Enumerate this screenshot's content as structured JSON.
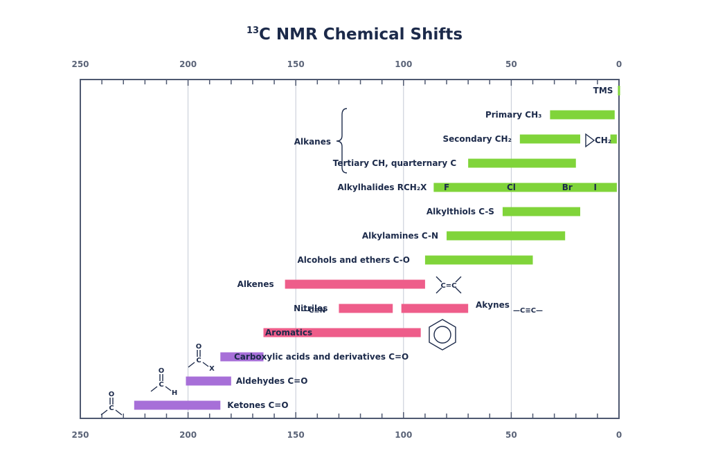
{
  "colors": {
    "alkyl": "#80d43a",
    "unsaturated": "#ee5d8a",
    "carbonyl": "#a76fd8",
    "frame": "#4e5870",
    "grid": "#c3c8d4",
    "text": "#1c2a4a"
  },
  "chart_data": {
    "type": "bar",
    "title_sup": "13",
    "title_main": "C NMR Chemical Shifts",
    "xlim": [
      250,
      0
    ],
    "xticks": [
      250,
      200,
      150,
      100,
      50,
      0
    ],
    "gridlines": [
      200,
      150,
      100,
      50
    ],
    "bars": [
      {
        "label": "TMS",
        "from": 0.5,
        "to": -0.5,
        "color": "alkyl",
        "row": 0
      },
      {
        "label": "Primary CH₃",
        "from": 32,
        "to": 2,
        "color": "alkyl",
        "row": 1
      },
      {
        "label": "Secondary CH₂",
        "from": 46,
        "to": 18,
        "color": "alkyl",
        "row": 2
      },
      {
        "label": "CH₂",
        "from": 4,
        "to": 1,
        "color": "alkyl",
        "row": 2
      },
      {
        "label": "Tertiary CH, quarternary C",
        "from": 70,
        "to": 20,
        "color": "alkyl",
        "row": 3
      },
      {
        "label": "Alkylhalides RCH₂X",
        "from": 86,
        "to": 1,
        "color": "alkyl",
        "row": 4
      },
      {
        "label": "Alkylthiols C-S",
        "from": 54,
        "to": 18,
        "color": "alkyl",
        "row": 5
      },
      {
        "label": "Alkylamines C-N",
        "from": 80,
        "to": 25,
        "color": "alkyl",
        "row": 6
      },
      {
        "label": "Alcohols and ethers C-O",
        "from": 90,
        "to": 40,
        "color": "alkyl",
        "row": 7
      },
      {
        "label": "Alkenes",
        "from": 155,
        "to": 90,
        "color": "unsaturated",
        "row": 8
      },
      {
        "label": "Nitriles",
        "from": 130,
        "to": 105,
        "color": "unsaturated",
        "row": 9
      },
      {
        "label": "Akynes",
        "from": 101,
        "to": 70,
        "color": "unsaturated",
        "row": 9
      },
      {
        "label": "Aromatics",
        "from": 165,
        "to": 92,
        "color": "unsaturated",
        "row": 10
      },
      {
        "label": "Carboxylic acids and derivatives C=O",
        "from": 185,
        "to": 165,
        "color": "carbonyl",
        "row": 11
      },
      {
        "label": "Aldehydes C=O",
        "from": 201,
        "to": 180,
        "color": "carbonyl",
        "row": 12
      },
      {
        "label": "Ketones C=O",
        "from": 225,
        "to": 185,
        "color": "carbonyl",
        "row": 13
      }
    ],
    "halogens": [
      {
        "label": "F",
        "x": 80
      },
      {
        "label": "Cl",
        "x": 50
      },
      {
        "label": "Br",
        "x": 24
      },
      {
        "label": "I",
        "x": 11
      }
    ],
    "group_label": "Alkanes",
    "symbols": {
      "nitrile": "—C≡N",
      "alkyne": "—C≡C—",
      "alkene_c": "C=C",
      "carbonyl_o": "O",
      "carbonyl_c": "C",
      "x_sub": "X",
      "h_sub": "H"
    }
  }
}
